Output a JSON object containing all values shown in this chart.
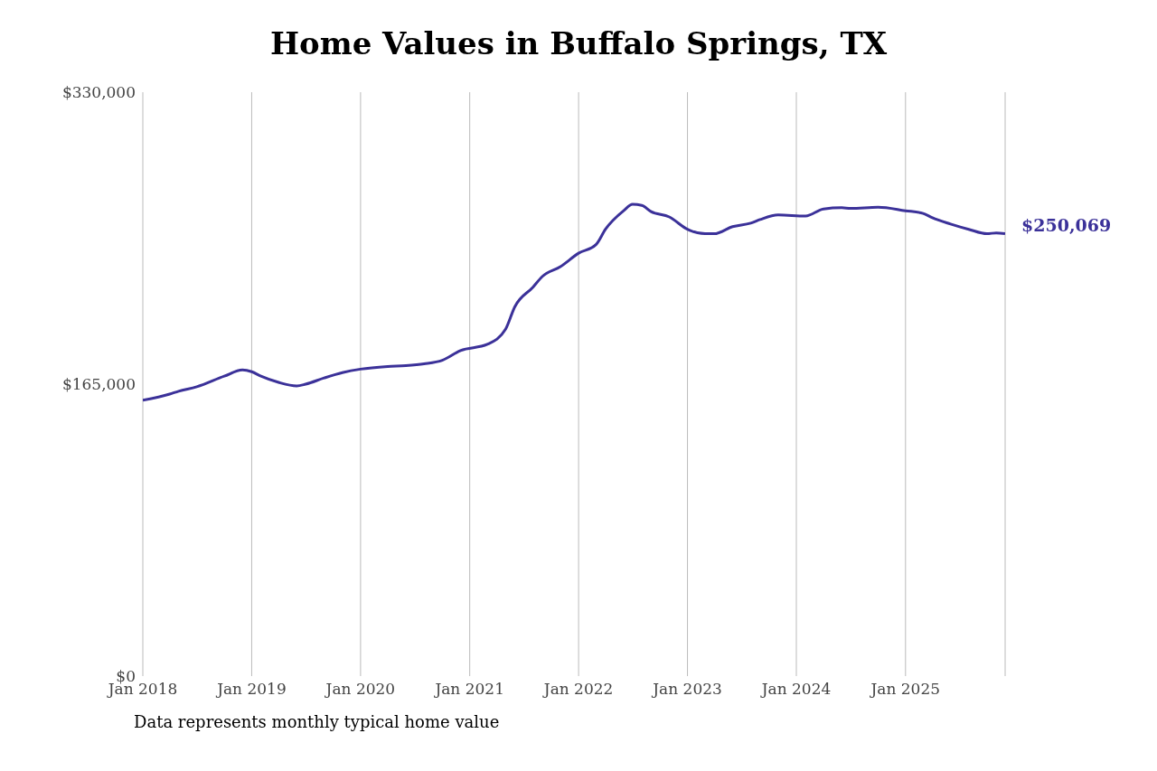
{
  "chart_data": {
    "type": "line",
    "title": "Home Values in Buffalo Springs, TX",
    "x": [
      "2018-01",
      "2018-04",
      "2018-05",
      "2018-07",
      "2018-10",
      "2018-12",
      "2019-01",
      "2019-02",
      "2019-04",
      "2019-06",
      "2019-07",
      "2019-09",
      "2019-11",
      "2020-01",
      "2020-04",
      "2020-06",
      "2020-08",
      "2020-10",
      "2020-12",
      "2021-03",
      "2021-05",
      "2021-06",
      "2021-08",
      "2021-09",
      "2021-11",
      "2022-01",
      "2022-03",
      "2022-04",
      "2022-06",
      "2022-07",
      "2022-08",
      "2022-09",
      "2022-11",
      "2023-01",
      "2023-03",
      "2023-04",
      "2023-06",
      "2023-08",
      "2023-09",
      "2023-11",
      "2024-02",
      "2024-04",
      "2024-06",
      "2024-07",
      "2024-10",
      "2025-01",
      "2025-03",
      "2025-04",
      "2025-06",
      "2025-08",
      "2025-10",
      "2025-11",
      "2025-12"
    ],
    "series": [
      {
        "color": "#3b3199",
        "values": [
          155900,
          159400,
          161000,
          163500,
          169500,
          173000,
          172000,
          169500,
          166000,
          164000,
          165000,
          168500,
          171500,
          173500,
          175000,
          175500,
          176500,
          178500,
          184000,
          187500,
          196000,
          208700,
          219800,
          225800,
          231400,
          239000,
          244000,
          252500,
          263000,
          266600,
          266000,
          262500,
          259500,
          252500,
          250000,
          250000,
          254000,
          256000,
          258000,
          260600,
          260000,
          264000,
          264700,
          264300,
          265000,
          263000,
          261500,
          259000,
          255500,
          252500,
          250000,
          250500,
          250069
        ]
      }
    ],
    "xlim": [
      "2018-01",
      "2025-12"
    ],
    "xticks": [
      {
        "value": "2018-01",
        "label": "Jan 2018"
      },
      {
        "value": "2019-01",
        "label": "Jan 2019"
      },
      {
        "value": "2020-01",
        "label": "Jan 2020"
      },
      {
        "value": "2021-01",
        "label": "Jan 2021"
      },
      {
        "value": "2022-01",
        "label": "Jan 2022"
      },
      {
        "value": "2023-01",
        "label": "Jan 2023"
      },
      {
        "value": "2024-01",
        "label": "Jan 2024"
      },
      {
        "value": "2025-01",
        "label": "Jan 2025"
      }
    ],
    "ylim": [
      0,
      330000
    ],
    "yticks": [
      {
        "value": 0,
        "label": "$0"
      },
      {
        "value": 165000,
        "label": "$165,000"
      },
      {
        "value": 330000,
        "label": "$330,000"
      }
    ],
    "grid": "x",
    "marker": "none",
    "line_style": "solid",
    "annotations": [
      {
        "text": "$250,069",
        "x": "2025-12",
        "y": 250069
      },
      "Data represents monthly typical home value"
    ]
  }
}
